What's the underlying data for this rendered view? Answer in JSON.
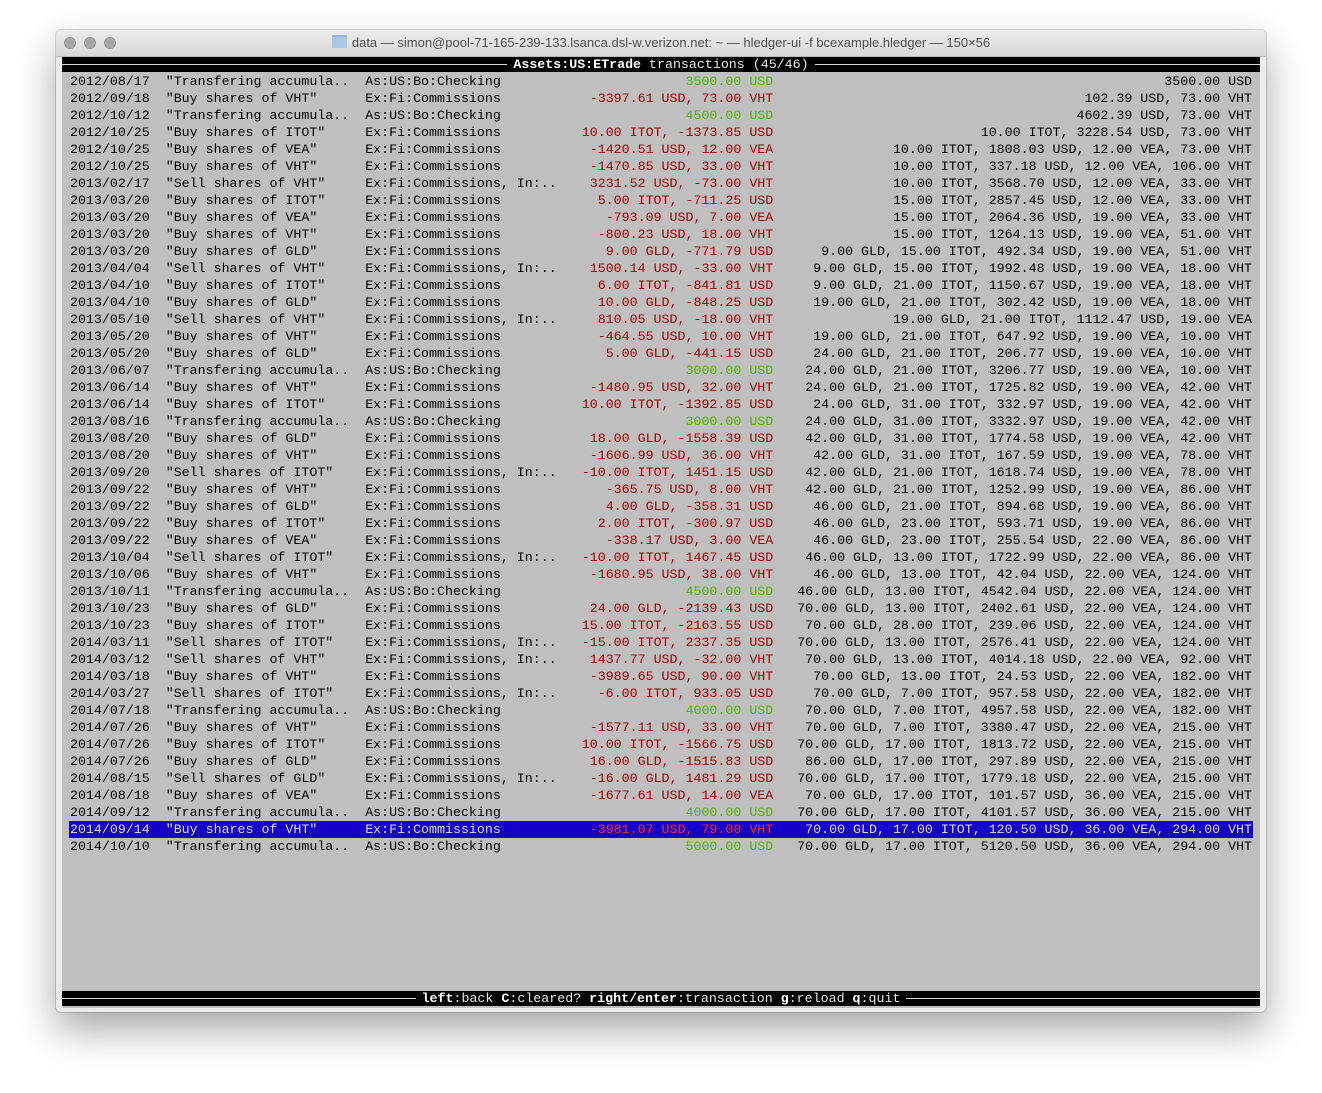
{
  "window": {
    "title": "data — simon@pool-71-165-239-133.lsanca.dsl-w.verizon.net: ~ — hledger-ui -f bcexample.hledger — 150×56"
  },
  "header": {
    "account": "Assets:US:ETrade",
    "label": "transactions",
    "position": "(45/46)"
  },
  "colors": {
    "negative": "#a00000",
    "positive": "#52b300",
    "selection": "#1400c8",
    "background": "#bfbfbf"
  },
  "selected_index": 44,
  "rows": [
    {
      "date": "2012/08/17",
      "desc": "\"Transfering accumula..",
      "account": "As:US:Bo:Checking",
      "change": "3500.00 USD",
      "kind": "pos",
      "balance": "3500.00 USD"
    },
    {
      "date": "2012/09/18",
      "desc": "\"Buy shares of VHT\"",
      "account": "Ex:Fi:Commissions",
      "change": "-3397.61 USD, 73.00 VHT",
      "kind": "neg",
      "balance": "102.39 USD, 73.00 VHT"
    },
    {
      "date": "2012/10/12",
      "desc": "\"Transfering accumula..",
      "account": "As:US:Bo:Checking",
      "change": "4500.00 USD",
      "kind": "pos",
      "balance": "4602.39 USD, 73.00 VHT"
    },
    {
      "date": "2012/10/25",
      "desc": "\"Buy shares of ITOT\"",
      "account": "Ex:Fi:Commissions",
      "change": "10.00 ITOT, -1373.85 USD",
      "kind": "neg",
      "balance": "10.00 ITOT, 3228.54 USD, 73.00 VHT"
    },
    {
      "date": "2012/10/25",
      "desc": "\"Buy shares of VEA\"",
      "account": "Ex:Fi:Commissions",
      "change": "-1420.51 USD, 12.00 VEA",
      "kind": "neg",
      "balance": "10.00 ITOT, 1808.03 USD, 12.00 VEA, 73.00 VHT"
    },
    {
      "date": "2012/10/25",
      "desc": "\"Buy shares of VHT\"",
      "account": "Ex:Fi:Commissions",
      "change": "-1470.85 USD, 33.00 VHT",
      "kind": "neg",
      "balance": "10.00 ITOT, 337.18 USD, 12.00 VEA, 106.00 VHT"
    },
    {
      "date": "2013/02/17",
      "desc": "\"Sell shares of VHT\"",
      "account": "Ex:Fi:Commissions, In:..",
      "change": "3231.52 USD, -73.00 VHT",
      "kind": "neg",
      "balance": "10.00 ITOT, 3568.70 USD, 12.00 VEA, 33.00 VHT"
    },
    {
      "date": "2013/03/20",
      "desc": "\"Buy shares of ITOT\"",
      "account": "Ex:Fi:Commissions",
      "change": "5.00 ITOT, -711.25 USD",
      "kind": "neg",
      "balance": "15.00 ITOT, 2857.45 USD, 12.00 VEA, 33.00 VHT"
    },
    {
      "date": "2013/03/20",
      "desc": "\"Buy shares of VEA\"",
      "account": "Ex:Fi:Commissions",
      "change": "-793.09 USD, 7.00 VEA",
      "kind": "neg",
      "balance": "15.00 ITOT, 2064.36 USD, 19.00 VEA, 33.00 VHT"
    },
    {
      "date": "2013/03/20",
      "desc": "\"Buy shares of VHT\"",
      "account": "Ex:Fi:Commissions",
      "change": "-800.23 USD, 18.00 VHT",
      "kind": "neg",
      "balance": "15.00 ITOT, 1264.13 USD, 19.00 VEA, 51.00 VHT"
    },
    {
      "date": "2013/03/20",
      "desc": "\"Buy shares of GLD\"",
      "account": "Ex:Fi:Commissions",
      "change": "9.00 GLD, -771.79 USD",
      "kind": "neg",
      "balance": "9.00 GLD, 15.00 ITOT, 492.34 USD, 19.00 VEA, 51.00 VHT"
    },
    {
      "date": "2013/04/04",
      "desc": "\"Sell shares of VHT\"",
      "account": "Ex:Fi:Commissions, In:..",
      "change": "1500.14 USD, -33.00 VHT",
      "kind": "neg",
      "balance": "9.00 GLD, 15.00 ITOT, 1992.48 USD, 19.00 VEA, 18.00 VHT"
    },
    {
      "date": "2013/04/10",
      "desc": "\"Buy shares of ITOT\"",
      "account": "Ex:Fi:Commissions",
      "change": "6.00 ITOT, -841.81 USD",
      "kind": "neg",
      "balance": "9.00 GLD, 21.00 ITOT, 1150.67 USD, 19.00 VEA, 18.00 VHT"
    },
    {
      "date": "2013/04/10",
      "desc": "\"Buy shares of GLD\"",
      "account": "Ex:Fi:Commissions",
      "change": "10.00 GLD, -848.25 USD",
      "kind": "neg",
      "balance": "19.00 GLD, 21.00 ITOT, 302.42 USD, 19.00 VEA, 18.00 VHT"
    },
    {
      "date": "2013/05/10",
      "desc": "\"Sell shares of VHT\"",
      "account": "Ex:Fi:Commissions, In:..",
      "change": "810.05 USD, -18.00 VHT",
      "kind": "neg",
      "balance": "19.00 GLD, 21.00 ITOT, 1112.47 USD, 19.00 VEA"
    },
    {
      "date": "2013/05/20",
      "desc": "\"Buy shares of VHT\"",
      "account": "Ex:Fi:Commissions",
      "change": "-464.55 USD, 10.00 VHT",
      "kind": "neg",
      "balance": "19.00 GLD, 21.00 ITOT, 647.92 USD, 19.00 VEA, 10.00 VHT"
    },
    {
      "date": "2013/05/20",
      "desc": "\"Buy shares of GLD\"",
      "account": "Ex:Fi:Commissions",
      "change": "5.00 GLD, -441.15 USD",
      "kind": "neg",
      "balance": "24.00 GLD, 21.00 ITOT, 206.77 USD, 19.00 VEA, 10.00 VHT"
    },
    {
      "date": "2013/06/07",
      "desc": "\"Transfering accumula..",
      "account": "As:US:Bo:Checking",
      "change": "3000.00 USD",
      "kind": "pos",
      "balance": "24.00 GLD, 21.00 ITOT, 3206.77 USD, 19.00 VEA, 10.00 VHT"
    },
    {
      "date": "2013/06/14",
      "desc": "\"Buy shares of VHT\"",
      "account": "Ex:Fi:Commissions",
      "change": "-1480.95 USD, 32.00 VHT",
      "kind": "neg",
      "balance": "24.00 GLD, 21.00 ITOT, 1725.82 USD, 19.00 VEA, 42.00 VHT"
    },
    {
      "date": "2013/06/14",
      "desc": "\"Buy shares of ITOT\"",
      "account": "Ex:Fi:Commissions",
      "change": "10.00 ITOT, -1392.85 USD",
      "kind": "neg",
      "balance": "24.00 GLD, 31.00 ITOT, 332.97 USD, 19.00 VEA, 42.00 VHT"
    },
    {
      "date": "2013/08/16",
      "desc": "\"Transfering accumula..",
      "account": "As:US:Bo:Checking",
      "change": "3000.00 USD",
      "kind": "pos",
      "balance": "24.00 GLD, 31.00 ITOT, 3332.97 USD, 19.00 VEA, 42.00 VHT"
    },
    {
      "date": "2013/08/20",
      "desc": "\"Buy shares of GLD\"",
      "account": "Ex:Fi:Commissions",
      "change": "18.00 GLD, -1558.39 USD",
      "kind": "neg",
      "balance": "42.00 GLD, 31.00 ITOT, 1774.58 USD, 19.00 VEA, 42.00 VHT"
    },
    {
      "date": "2013/08/20",
      "desc": "\"Buy shares of VHT\"",
      "account": "Ex:Fi:Commissions",
      "change": "-1606.99 USD, 36.00 VHT",
      "kind": "neg",
      "balance": "42.00 GLD, 31.00 ITOT, 167.59 USD, 19.00 VEA, 78.00 VHT"
    },
    {
      "date": "2013/09/20",
      "desc": "\"Sell shares of ITOT\"",
      "account": "Ex:Fi:Commissions, In:..",
      "change": "-10.00 ITOT, 1451.15 USD",
      "kind": "neg",
      "balance": "42.00 GLD, 21.00 ITOT, 1618.74 USD, 19.00 VEA, 78.00 VHT"
    },
    {
      "date": "2013/09/22",
      "desc": "\"Buy shares of VHT\"",
      "account": "Ex:Fi:Commissions",
      "change": "-365.75 USD, 8.00 VHT",
      "kind": "neg",
      "balance": "42.00 GLD, 21.00 ITOT, 1252.99 USD, 19.00 VEA, 86.00 VHT"
    },
    {
      "date": "2013/09/22",
      "desc": "\"Buy shares of GLD\"",
      "account": "Ex:Fi:Commissions",
      "change": "4.00 GLD, -358.31 USD",
      "kind": "neg",
      "balance": "46.00 GLD, 21.00 ITOT, 894.68 USD, 19.00 VEA, 86.00 VHT"
    },
    {
      "date": "2013/09/22",
      "desc": "\"Buy shares of ITOT\"",
      "account": "Ex:Fi:Commissions",
      "change": "2.00 ITOT, -300.97 USD",
      "kind": "neg",
      "balance": "46.00 GLD, 23.00 ITOT, 593.71 USD, 19.00 VEA, 86.00 VHT"
    },
    {
      "date": "2013/09/22",
      "desc": "\"Buy shares of VEA\"",
      "account": "Ex:Fi:Commissions",
      "change": "-338.17 USD, 3.00 VEA",
      "kind": "neg",
      "balance": "46.00 GLD, 23.00 ITOT, 255.54 USD, 22.00 VEA, 86.00 VHT"
    },
    {
      "date": "2013/10/04",
      "desc": "\"Sell shares of ITOT\"",
      "account": "Ex:Fi:Commissions, In:..",
      "change": "-10.00 ITOT, 1467.45 USD",
      "kind": "neg",
      "balance": "46.00 GLD, 13.00 ITOT, 1722.99 USD, 22.00 VEA, 86.00 VHT"
    },
    {
      "date": "2013/10/06",
      "desc": "\"Buy shares of VHT\"",
      "account": "Ex:Fi:Commissions",
      "change": "-1680.95 USD, 38.00 VHT",
      "kind": "neg",
      "balance": "46.00 GLD, 13.00 ITOT, 42.04 USD, 22.00 VEA, 124.00 VHT"
    },
    {
      "date": "2013/10/11",
      "desc": "\"Transfering accumula..",
      "account": "As:US:Bo:Checking",
      "change": "4500.00 USD",
      "kind": "pos",
      "balance": "46.00 GLD, 13.00 ITOT, 4542.04 USD, 22.00 VEA, 124.00 VHT"
    },
    {
      "date": "2013/10/23",
      "desc": "\"Buy shares of GLD\"",
      "account": "Ex:Fi:Commissions",
      "change": "24.00 GLD, -2139.43 USD",
      "kind": "neg",
      "balance": "70.00 GLD, 13.00 ITOT, 2402.61 USD, 22.00 VEA, 124.00 VHT"
    },
    {
      "date": "2013/10/23",
      "desc": "\"Buy shares of ITOT\"",
      "account": "Ex:Fi:Commissions",
      "change": "15.00 ITOT, -2163.55 USD",
      "kind": "neg",
      "balance": "70.00 GLD, 28.00 ITOT, 239.06 USD, 22.00 VEA, 124.00 VHT"
    },
    {
      "date": "2014/03/11",
      "desc": "\"Sell shares of ITOT\"",
      "account": "Ex:Fi:Commissions, In:..",
      "change": "-15.00 ITOT, 2337.35 USD",
      "kind": "neg",
      "balance": "70.00 GLD, 13.00 ITOT, 2576.41 USD, 22.00 VEA, 124.00 VHT"
    },
    {
      "date": "2014/03/12",
      "desc": "\"Sell shares of VHT\"",
      "account": "Ex:Fi:Commissions, In:..",
      "change": "1437.77 USD, -32.00 VHT",
      "kind": "neg",
      "balance": "70.00 GLD, 13.00 ITOT, 4014.18 USD, 22.00 VEA, 92.00 VHT"
    },
    {
      "date": "2014/03/18",
      "desc": "\"Buy shares of VHT\"",
      "account": "Ex:Fi:Commissions",
      "change": "-3989.65 USD, 90.00 VHT",
      "kind": "neg",
      "balance": "70.00 GLD, 13.00 ITOT, 24.53 USD, 22.00 VEA, 182.00 VHT"
    },
    {
      "date": "2014/03/27",
      "desc": "\"Sell shares of ITOT\"",
      "account": "Ex:Fi:Commissions, In:..",
      "change": "-6.00 ITOT, 933.05 USD",
      "kind": "neg",
      "balance": "70.00 GLD, 7.00 ITOT, 957.58 USD, 22.00 VEA, 182.00 VHT"
    },
    {
      "date": "2014/07/18",
      "desc": "\"Transfering accumula..",
      "account": "As:US:Bo:Checking",
      "change": "4000.00 USD",
      "kind": "pos",
      "balance": "70.00 GLD, 7.00 ITOT, 4957.58 USD, 22.00 VEA, 182.00 VHT"
    },
    {
      "date": "2014/07/26",
      "desc": "\"Buy shares of VHT\"",
      "account": "Ex:Fi:Commissions",
      "change": "-1577.11 USD, 33.00 VHT",
      "kind": "neg",
      "balance": "70.00 GLD, 7.00 ITOT, 3380.47 USD, 22.00 VEA, 215.00 VHT"
    },
    {
      "date": "2014/07/26",
      "desc": "\"Buy shares of ITOT\"",
      "account": "Ex:Fi:Commissions",
      "change": "10.00 ITOT, -1566.75 USD",
      "kind": "neg",
      "balance": "70.00 GLD, 17.00 ITOT, 1813.72 USD, 22.00 VEA, 215.00 VHT"
    },
    {
      "date": "2014/07/26",
      "desc": "\"Buy shares of GLD\"",
      "account": "Ex:Fi:Commissions",
      "change": "16.00 GLD, -1515.83 USD",
      "kind": "neg",
      "balance": "86.00 GLD, 17.00 ITOT, 297.89 USD, 22.00 VEA, 215.00 VHT"
    },
    {
      "date": "2014/08/15",
      "desc": "\"Sell shares of GLD\"",
      "account": "Ex:Fi:Commissions, In:..",
      "change": "-16.00 GLD, 1481.29 USD",
      "kind": "neg",
      "balance": "70.00 GLD, 17.00 ITOT, 1779.18 USD, 22.00 VEA, 215.00 VHT"
    },
    {
      "date": "2014/08/18",
      "desc": "\"Buy shares of VEA\"",
      "account": "Ex:Fi:Commissions",
      "change": "-1677.61 USD, 14.00 VEA",
      "kind": "neg",
      "balance": "70.00 GLD, 17.00 ITOT, 101.57 USD, 36.00 VEA, 215.00 VHT"
    },
    {
      "date": "2014/09/12",
      "desc": "\"Transfering accumula..",
      "account": "As:US:Bo:Checking",
      "change": "4000.00 USD",
      "kind": "pos",
      "balance": "70.00 GLD, 17.00 ITOT, 4101.57 USD, 36.00 VEA, 215.00 VHT"
    },
    {
      "date": "2014/09/14",
      "desc": "\"Buy shares of VHT\"",
      "account": "Ex:Fi:Commissions",
      "change": "-3981.07 USD, 79.00 VHT",
      "kind": "neg",
      "balance": "70.00 GLD, 17.00 ITOT, 120.50 USD, 36.00 VEA, 294.00 VHT"
    },
    {
      "date": "2014/10/10",
      "desc": "\"Transfering accumula..",
      "account": "As:US:Bo:Checking",
      "change": "5000.00 USD",
      "kind": "pos",
      "balance": "70.00 GLD, 17.00 ITOT, 5120.50 USD, 36.00 VEA, 294.00 VHT"
    }
  ],
  "footer": {
    "keys": [
      {
        "key": "left",
        "action": "back"
      },
      {
        "key": "C",
        "action": "cleared?"
      },
      {
        "key": "right/enter",
        "action": "transaction"
      },
      {
        "key": "g",
        "action": "reload"
      },
      {
        "key": "q",
        "action": "quit"
      }
    ]
  }
}
